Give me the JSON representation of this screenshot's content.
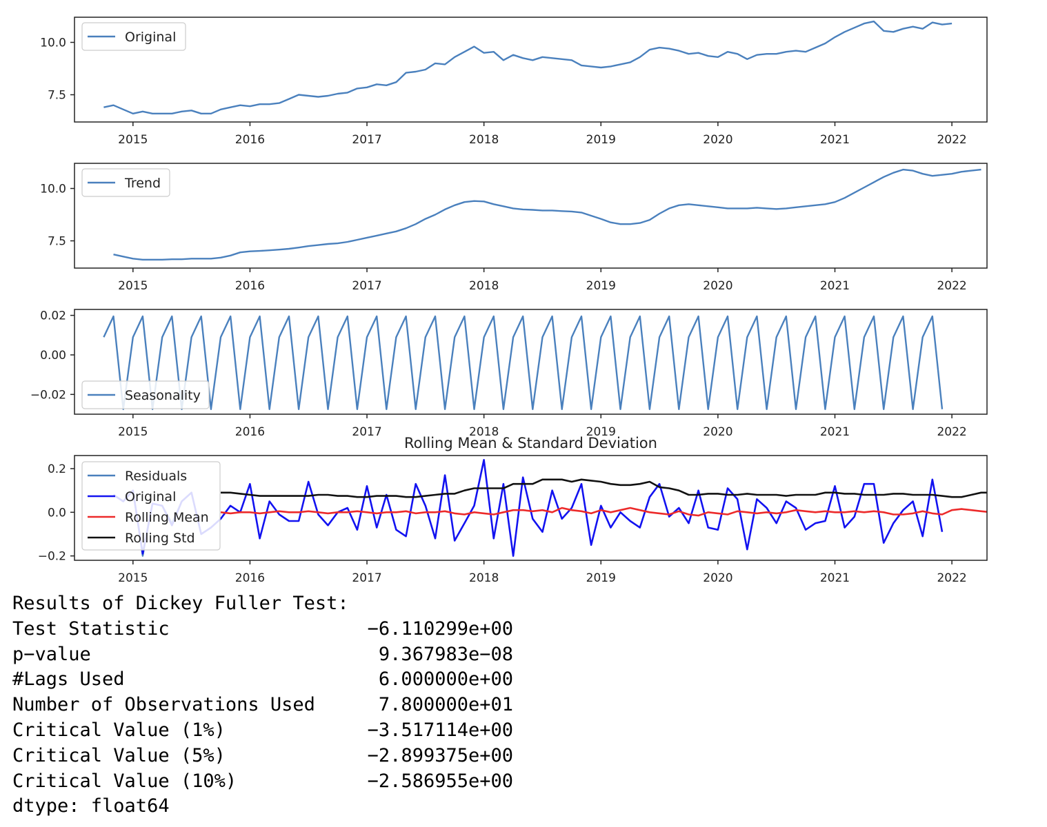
{
  "colors": {
    "steelblue": "#4a80bd",
    "blue": "#1212f0",
    "red": "#ec2a2a",
    "black": "#111111",
    "axis": "#222222"
  },
  "chart_data": [
    {
      "type": "line",
      "ylim": [
        6.2,
        11.2
      ],
      "xlim": [
        2014.5,
        2022.3
      ],
      "yticks": [
        7.5,
        10.0
      ],
      "ytick_labels": [
        "7.5",
        "10.0"
      ],
      "xticks": [
        2015,
        2016,
        2017,
        2018,
        2019,
        2020,
        2021,
        2022
      ],
      "xtick_labels": [
        "2015",
        "2016",
        "2017",
        "2018",
        "2019",
        "2020",
        "2021",
        "2022"
      ],
      "legend_placement": "upper-left",
      "series": [
        {
          "name": "Original",
          "color": "#4a80bd",
          "x_start": 2014.75,
          "step": 0.0833333,
          "values": [
            6.9,
            7.0,
            6.8,
            6.6,
            6.7,
            6.6,
            6.6,
            6.6,
            6.7,
            6.75,
            6.6,
            6.6,
            6.8,
            6.9,
            7.0,
            6.95,
            7.05,
            7.05,
            7.1,
            7.3,
            7.5,
            7.45,
            7.4,
            7.45,
            7.55,
            7.6,
            7.8,
            7.85,
            8.0,
            7.95,
            8.1,
            8.55,
            8.6,
            8.7,
            9.0,
            8.95,
            9.3,
            9.55,
            9.8,
            9.5,
            9.55,
            9.15,
            9.4,
            9.25,
            9.15,
            9.3,
            9.25,
            9.2,
            9.15,
            8.9,
            8.85,
            8.8,
            8.85,
            8.95,
            9.05,
            9.3,
            9.65,
            9.75,
            9.7,
            9.6,
            9.45,
            9.5,
            9.35,
            9.3,
            9.55,
            9.45,
            9.2,
            9.4,
            9.45,
            9.45,
            9.55,
            9.6,
            9.55,
            9.75,
            9.95,
            10.25,
            10.5,
            10.7,
            10.9,
            11.0,
            10.55,
            10.5,
            10.65,
            10.75,
            10.65,
            10.95,
            10.85,
            10.9
          ]
        }
      ]
    },
    {
      "type": "line",
      "ylim": [
        6.2,
        11.2
      ],
      "xlim": [
        2014.5,
        2022.3
      ],
      "yticks": [
        7.5,
        10.0
      ],
      "ytick_labels": [
        "7.5",
        "10.0"
      ],
      "xticks": [
        2015,
        2016,
        2017,
        2018,
        2019,
        2020,
        2021,
        2022
      ],
      "xtick_labels": [
        "2015",
        "2016",
        "2017",
        "2018",
        "2019",
        "2020",
        "2021",
        "2022"
      ],
      "legend_placement": "upper-left",
      "series": [
        {
          "name": "Trend",
          "color": "#4a80bd",
          "x_start": 2014.8333,
          "step": 0.0833333,
          "values": [
            6.85,
            6.75,
            6.65,
            6.6,
            6.6,
            6.6,
            6.62,
            6.62,
            6.65,
            6.65,
            6.65,
            6.7,
            6.8,
            6.95,
            7.0,
            7.02,
            7.05,
            7.08,
            7.12,
            7.18,
            7.25,
            7.3,
            7.35,
            7.38,
            7.45,
            7.55,
            7.65,
            7.75,
            7.85,
            7.95,
            8.1,
            8.3,
            8.55,
            8.75,
            9.0,
            9.2,
            9.35,
            9.4,
            9.38,
            9.25,
            9.15,
            9.05,
            9.0,
            8.98,
            8.95,
            8.95,
            8.92,
            8.9,
            8.85,
            8.7,
            8.55,
            8.38,
            8.3,
            8.3,
            8.35,
            8.5,
            8.8,
            9.05,
            9.2,
            9.25,
            9.2,
            9.15,
            9.1,
            9.05,
            9.05,
            9.05,
            9.08,
            9.05,
            9.02,
            9.05,
            9.1,
            9.15,
            9.2,
            9.25,
            9.35,
            9.55,
            9.8,
            10.05,
            10.3,
            10.55,
            10.75,
            10.9,
            10.85,
            10.7,
            10.6,
            10.65,
            10.7,
            10.8,
            10.85,
            10.9
          ]
        }
      ]
    },
    {
      "type": "line",
      "ylim": [
        -0.03,
        0.023
      ],
      "xlim": [
        2014.5,
        2022.3
      ],
      "yticks": [
        -0.02,
        0.0,
        0.02
      ],
      "ytick_labels": [
        "−0.02",
        "0.00",
        "0.02"
      ],
      "xticks": [
        2015,
        2016,
        2017,
        2018,
        2019,
        2020,
        2021,
        2022
      ],
      "xtick_labels": [
        "2015",
        "2016",
        "2017",
        "2018",
        "2019",
        "2020",
        "2021",
        "2022"
      ],
      "legend_placement": "lower-left",
      "series": [
        {
          "name": "Seasonality",
          "color": "#4a80bd",
          "x_start": 2014.75,
          "step": 0.0833333,
          "pattern": [
            0.009,
            0.0195,
            -0.0275
          ],
          "count": 87
        }
      ]
    },
    {
      "type": "line",
      "title": "Rolling Mean & Standard Deviation",
      "ylim": [
        -0.22,
        0.26
      ],
      "xlim": [
        2014.5,
        2022.3
      ],
      "yticks": [
        -0.2,
        0.0,
        0.2
      ],
      "ytick_labels": [
        "−0.2",
        "0.0",
        "0.2"
      ],
      "xticks": [
        2015,
        2016,
        2017,
        2018,
        2019,
        2020,
        2021,
        2022
      ],
      "xtick_labels": [
        "2015",
        "2016",
        "2017",
        "2018",
        "2019",
        "2020",
        "2021",
        "2022"
      ],
      "legend_placement": "upper-left",
      "series": [
        {
          "name": "Residuals",
          "color": "#4a80bd",
          "x_start": 2014.8333,
          "step": 0.0833333,
          "values": [
            0.08,
            0.05,
            0.1,
            -0.2,
            0.04,
            0.03,
            -0.05,
            0.05,
            0.09,
            -0.1,
            -0.07,
            -0.03
          ]
        },
        {
          "name": "Original",
          "color": "#1212f0",
          "x_start": 2014.8333,
          "step": 0.0833333,
          "values": [
            0.08,
            0.05,
            0.1,
            -0.19,
            0.04,
            0.03,
            -0.06,
            0.05,
            0.09,
            -0.1,
            -0.07,
            -0.03,
            0.03,
            0.0,
            0.13,
            -0.12,
            0.05,
            -0.01,
            -0.04,
            -0.04,
            0.14,
            -0.01,
            -0.06,
            0.0,
            0.02,
            -0.08,
            0.12,
            -0.07,
            0.08,
            -0.08,
            -0.11,
            0.13,
            0.03,
            -0.12,
            0.17,
            -0.13,
            -0.05,
            0.03,
            0.24,
            -0.12,
            0.13,
            -0.2,
            0.16,
            -0.03,
            -0.09,
            0.1,
            -0.03,
            0.02,
            0.13,
            -0.15,
            0.03,
            -0.07,
            0.0,
            -0.04,
            -0.07,
            0.07,
            0.13,
            -0.02,
            0.02,
            -0.05,
            0.1,
            -0.07,
            -0.08,
            0.11,
            0.06,
            -0.17,
            0.06,
            0.02,
            -0.05,
            0.05,
            0.02,
            -0.08,
            -0.05,
            -0.04,
            0.12,
            -0.07,
            -0.02,
            0.13,
            0.13,
            -0.14,
            -0.05,
            0.01,
            0.05,
            -0.11,
            0.15,
            -0.09
          ]
        },
        {
          "name": "Rolling Mean",
          "color": "#ec2a2a",
          "x_start": 2015.75,
          "step": 0.0833333,
          "values": [
            0.0,
            -0.005,
            0.0,
            0.0,
            -0.005,
            0.0,
            0.005,
            0.0,
            0.0,
            0.005,
            0.0,
            -0.005,
            0.0,
            0.0,
            0.005,
            0.0,
            -0.005,
            0.0,
            0.0,
            0.005,
            -0.005,
            0.0,
            0.0,
            0.005,
            -0.005,
            -0.01,
            0.0,
            -0.005,
            -0.01,
            0.0,
            0.01,
            0.01,
            0.005,
            0.01,
            0.0,
            0.02,
            0.01,
            0.005,
            -0.005,
            0.01,
            0.0,
            0.01,
            0.02,
            0.01,
            0.0,
            -0.005,
            -0.01,
            0.005,
            -0.01,
            -0.015,
            0.0,
            -0.005,
            -0.01,
            0.005,
            0.0,
            -0.005,
            0.0,
            -0.005,
            0.0,
            0.01,
            0.005,
            0.0,
            0.005,
            0.0,
            0.0,
            0.005,
            0.0,
            0.005,
            0.0,
            -0.01,
            -0.01,
            -0.005,
            0.005,
            -0.005,
            -0.01,
            0.01,
            0.015,
            0.01,
            0.005,
            0.0,
            0.0,
            0.005,
            0.0,
            0.01,
            0.01
          ]
        },
        {
          "name": "Rolling Std",
          "color": "#111111",
          "x_start": 2015.75,
          "step": 0.0833333,
          "values": [
            0.09,
            0.09,
            0.085,
            0.08,
            0.075,
            0.075,
            0.075,
            0.075,
            0.075,
            0.075,
            0.08,
            0.08,
            0.075,
            0.075,
            0.07,
            0.07,
            0.075,
            0.075,
            0.075,
            0.07,
            0.07,
            0.075,
            0.08,
            0.085,
            0.085,
            0.1,
            0.11,
            0.11,
            0.11,
            0.11,
            0.13,
            0.13,
            0.13,
            0.15,
            0.15,
            0.15,
            0.14,
            0.15,
            0.145,
            0.14,
            0.13,
            0.125,
            0.125,
            0.13,
            0.14,
            0.115,
            0.11,
            0.1,
            0.08,
            0.08,
            0.085,
            0.085,
            0.08,
            0.08,
            0.085,
            0.08,
            0.08,
            0.08,
            0.075,
            0.08,
            0.08,
            0.08,
            0.09,
            0.09,
            0.085,
            0.085,
            0.08,
            0.08,
            0.08,
            0.085,
            0.085,
            0.08,
            0.08,
            0.08,
            0.075,
            0.07,
            0.07,
            0.08,
            0.09,
            0.09,
            0.09,
            0.09,
            0.095,
            0.1,
            0.1,
            0.105
          ]
        }
      ]
    }
  ],
  "output": {
    "heading": "Results of Dickey Fuller Test:",
    "rows": [
      {
        "label": "Test Statistic",
        "value": "−6.110299e+00"
      },
      {
        "label": "p−value",
        "value": "9.367983e−08"
      },
      {
        "label": "#Lags Used",
        "value": "6.000000e+00"
      },
      {
        "label": "Number of Observations Used",
        "value": "7.800000e+01"
      },
      {
        "label": "Critical Value (1%)",
        "value": "−3.517114e+00"
      },
      {
        "label": "Critical Value (5%)",
        "value": "−2.899375e+00"
      },
      {
        "label": "Critical Value (10%)",
        "value": "−2.586955e+00"
      }
    ],
    "footer": "dtype: float64"
  }
}
